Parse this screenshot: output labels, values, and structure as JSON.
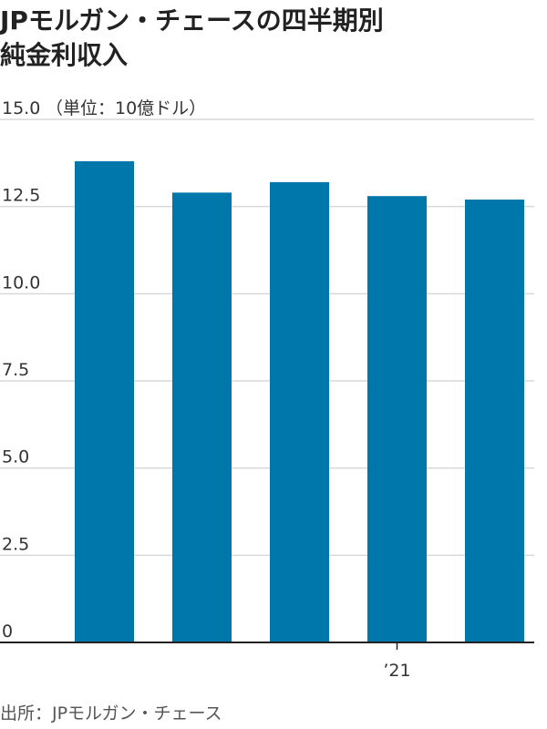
{
  "title_lines": [
    "JPモルガン・チェースの四半期別",
    "純金利収入"
  ],
  "unit_label": "（単位：10億ドル）",
  "source": "出所：JPモルガン・チェース",
  "colors": {
    "bar": "#0077AB",
    "grid": "#D8D8D8",
    "axis": "#222222",
    "text": "#333333"
  },
  "chart_data": {
    "type": "bar",
    "title": "JPモルガン・チェースの四半期別純金利収入",
    "ylabel": "（単位：10億ドル）",
    "xlabel": "",
    "ylim": [
      0,
      15
    ],
    "yticks": [
      "15.0",
      "12.5",
      "10.0",
      "7.5",
      "5.0",
      "2.5",
      "0"
    ],
    "ytick_values": [
      15,
      12.5,
      10,
      7.5,
      5,
      2.5,
      0
    ],
    "grid": true,
    "categories": [
      "",
      "",
      "",
      "’21",
      ""
    ],
    "x_tick_labels": [
      {
        "index": 3,
        "label": "’21"
      }
    ],
    "values": [
      13.8,
      12.9,
      13.2,
      12.8,
      12.7
    ]
  }
}
